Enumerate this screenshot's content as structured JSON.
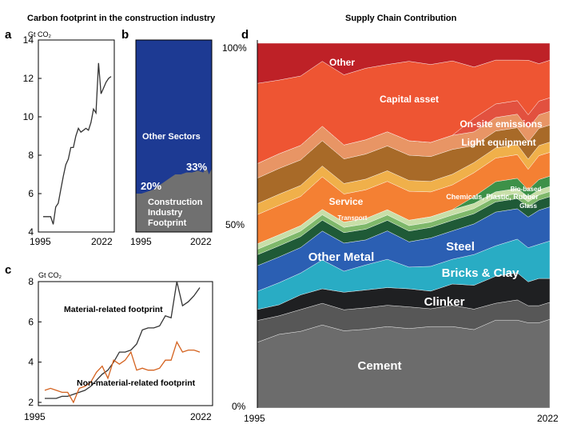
{
  "figure": {
    "left_title": "Carbon footprint in the construction industry",
    "right_title": "Supply Chain Contribution"
  },
  "chart_data": [
    {
      "panel": "a",
      "type": "line",
      "ylabel": "Gt CO₂",
      "xlim": [
        1995,
        2022
      ],
      "ylim": [
        4,
        14
      ],
      "xticks": [
        "1995",
        "2022"
      ],
      "yticks": [
        "4",
        "6",
        "8",
        "10",
        "12",
        "14"
      ],
      "x": [
        1995,
        1996,
        1997,
        1998,
        1999,
        2000,
        2001,
        2002,
        2003,
        2004,
        2005,
        2006,
        2007,
        2008,
        2009,
        2010,
        2011,
        2012,
        2013,
        2014,
        2015,
        2016,
        2017,
        2018,
        2019,
        2020,
        2021,
        2022
      ],
      "series": [
        {
          "values": [
            4.8,
            4.8,
            4.8,
            4.8,
            4.4,
            5.3,
            5.5,
            6.2,
            6.9,
            7.5,
            7.8,
            8.4,
            8.4,
            9.0,
            9.4,
            9.2,
            9.3,
            9.4,
            9.3,
            9.7,
            10.4,
            10.2,
            12.8,
            11.2,
            11.5,
            11.8,
            12.0,
            12.1
          ]
        }
      ]
    },
    {
      "panel": "b",
      "type": "area",
      "xlim": [
        1995,
        2022
      ],
      "ylim": [
        0,
        100
      ],
      "xticks": [
        "1995",
        "2022"
      ],
      "x": [
        1995,
        1997,
        1999,
        2001,
        2003,
        2005,
        2007,
        2009,
        2011,
        2013,
        2015,
        2017,
        2019,
        2020,
        2021,
        2022
      ],
      "series_labels": [
        "Construction Industry Footprint",
        "Other Sectors"
      ],
      "construction_share": [
        20,
        20,
        21,
        22,
        24,
        26,
        28,
        30,
        30,
        31,
        31,
        32,
        31,
        34,
        30,
        33
      ],
      "annotations": [
        "20%",
        "33%"
      ]
    },
    {
      "panel": "c",
      "type": "line",
      "ylabel": "Gt CO₂",
      "xlim": [
        1995,
        2022
      ],
      "ylim": [
        2,
        8
      ],
      "xticks": [
        "1995",
        "2022"
      ],
      "yticks": [
        "2",
        "4",
        "6",
        "8"
      ],
      "x": [
        1995,
        1996,
        1997,
        1998,
        1999,
        2000,
        2001,
        2002,
        2003,
        2004,
        2005,
        2006,
        2007,
        2008,
        2009,
        2010,
        2011,
        2012,
        2013,
        2014,
        2015,
        2016,
        2017,
        2018,
        2019,
        2020,
        2021,
        2022
      ],
      "series": [
        {
          "name": "Material-related footprint",
          "color": "#333333",
          "values": [
            2.2,
            2.2,
            2.2,
            2.3,
            2.3,
            2.4,
            2.5,
            2.6,
            2.8,
            3.1,
            3.4,
            3.6,
            4.0,
            4.5,
            4.5,
            4.6,
            4.9,
            5.6,
            5.7,
            5.7,
            5.8,
            6.3,
            6.2,
            8.0,
            6.8,
            7.0,
            7.3,
            7.7
          ]
        },
        {
          "name": "Non-material-related footprint",
          "color": "#d4621f",
          "values": [
            2.6,
            2.7,
            2.6,
            2.5,
            2.5,
            2.0,
            2.7,
            2.8,
            3.0,
            3.5,
            3.8,
            3.2,
            4.1,
            3.9,
            4.1,
            4.5,
            3.6,
            3.7,
            3.6,
            3.6,
            3.7,
            4.1,
            4.1,
            5.0,
            4.5,
            4.6,
            4.6,
            4.5
          ]
        }
      ]
    },
    {
      "panel": "d",
      "type": "area",
      "stacked": true,
      "xlim": [
        1995,
        2022
      ],
      "ylim": [
        0,
        100
      ],
      "xticks": [
        "1995",
        "2022"
      ],
      "yticks": [
        "0%",
        "50%",
        "100%"
      ],
      "x": [
        1995,
        1997,
        1999,
        2001,
        2003,
        2005,
        2007,
        2009,
        2011,
        2013,
        2015,
        2017,
        2019,
        2020,
        2021,
        2022
      ],
      "series": [
        {
          "name": "Cement",
          "color": "#6c6c6c",
          "values": [
            18,
            20,
            21,
            23,
            22,
            22,
            23,
            22,
            23,
            23,
            23,
            26,
            26,
            25,
            25,
            26
          ]
        },
        {
          "name": "Clinker",
          "color": "#575757",
          "values": [
            6,
            5,
            6,
            6,
            6,
            6,
            6,
            6,
            5,
            6,
            6,
            5,
            6,
            5,
            5,
            5
          ]
        },
        {
          "name": "Bricks & Clay",
          "color": "#1f2022",
          "values": [
            3,
            3,
            4,
            4,
            5,
            5,
            5,
            5,
            5,
            6,
            7,
            8,
            8,
            7,
            8,
            7
          ]
        },
        {
          "name": "Steel",
          "color": "#29acc4",
          "values": [
            5,
            6,
            6,
            8,
            6,
            7,
            8,
            6,
            7,
            7,
            9,
            9,
            10,
            10,
            10,
            11
          ]
        },
        {
          "name": "Other Metal",
          "color": "#2b5fb3",
          "values": [
            7,
            7,
            7,
            8,
            8,
            7,
            8,
            7,
            8,
            8,
            9,
            10,
            9,
            9,
            10,
            10
          ]
        },
        {
          "name": "Transport-dark",
          "color": "#1f5a37",
          "values": [
            3,
            3,
            3,
            3,
            3,
            3,
            3,
            3,
            3,
            3,
            3,
            3,
            3,
            3,
            3,
            3
          ]
        },
        {
          "name": "Transport",
          "color": "#7fb86b",
          "values": [
            1.5,
            1.5,
            1.5,
            1.5,
            1.5,
            1.5,
            1.5,
            1.5,
            1.5,
            1.5,
            1.5,
            1.5,
            1.5,
            1.5,
            1.5,
            1.5
          ]
        },
        {
          "name": "Transport-light",
          "color": "#c8dfa8",
          "values": [
            1.5,
            1.5,
            1.5,
            1.5,
            1.5,
            1.5,
            1.5,
            1.5,
            1.5,
            1.5,
            1.5,
            1.5,
            1.5,
            1.5,
            1.5,
            1.5
          ]
        },
        {
          "name": "Bio-based Chemicals, Plastic, Rubber Glass",
          "color": "#3d9148",
          "values": [
            0,
            0,
            0,
            0,
            0,
            0,
            0,
            0,
            0,
            0,
            2,
            3,
            3,
            2,
            3,
            3
          ]
        },
        {
          "name": "Service",
          "color": "#f48033",
          "values": [
            8,
            8,
            8,
            9,
            8,
            8,
            8,
            8,
            7,
            7,
            7,
            7,
            7,
            6,
            7,
            7
          ]
        },
        {
          "name": "Light equipment",
          "color": "#f0b04a",
          "values": [
            3,
            3,
            3,
            3,
            3,
            3,
            3,
            3,
            3,
            3,
            3,
            3,
            3,
            3,
            3,
            3
          ]
        },
        {
          "name": "Light equipment-brown",
          "color": "#a86a28",
          "values": [
            7,
            7,
            7,
            7,
            7,
            7,
            7,
            7,
            7,
            7,
            5,
            5,
            5,
            5,
            5,
            5
          ]
        },
        {
          "name": "On-site emissions",
          "color": "#e89565",
          "values": [
            4,
            4,
            4,
            4,
            4,
            4,
            4,
            4,
            4,
            4,
            4,
            4,
            4,
            4,
            4,
            4
          ]
        },
        {
          "name": "On-site emissions-red",
          "color": "#e2513f",
          "values": [
            0,
            0,
            0,
            0,
            0,
            0,
            0,
            0,
            0,
            0,
            4,
            4,
            4,
            4,
            4,
            4
          ]
        },
        {
          "name": "Capital asset",
          "color": "#ee5533",
          "values": [
            22,
            20,
            19,
            18,
            20,
            20,
            19,
            22,
            22,
            21,
            15,
            13,
            12,
            16,
            11,
            11
          ]
        },
        {
          "name": "Other",
          "color": "#be2127",
          "values": [
            11,
            10,
            9,
            5,
            9,
            7,
            6,
            5,
            6,
            5,
            7,
            5,
            5,
            5,
            6,
            5
          ]
        }
      ],
      "labels": {
        "cement": "Cement",
        "clinker": "Clinker",
        "bricks": "Bricks & Clay",
        "steel": "Steel",
        "other_metal": "Other Metal",
        "transport": "Transport",
        "service": "Service",
        "bio": "Bio-based",
        "bio2": "Chemicals, Plastic, Rubber",
        "bio3": "Glass",
        "light": "Light equipment",
        "onsite": "On-site emissions",
        "capital": "Capital asset",
        "other": "Other"
      }
    }
  ]
}
